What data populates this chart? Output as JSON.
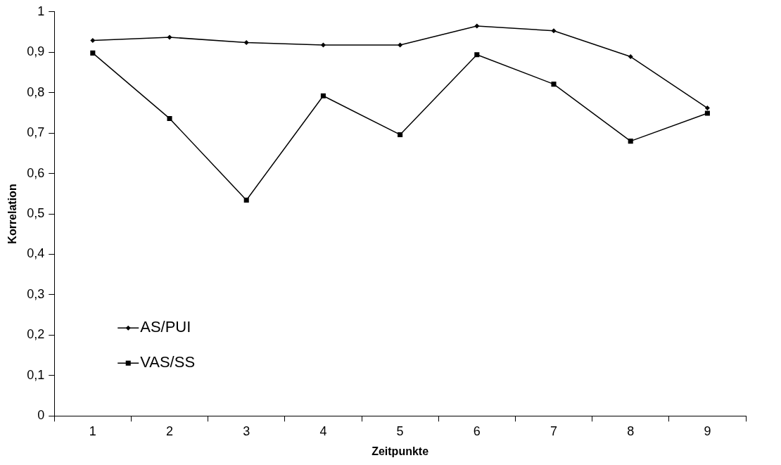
{
  "chart_data": {
    "type": "line",
    "xlabel": "Zeitpunkte",
    "ylabel": "Korrelation",
    "categories": [
      "1",
      "2",
      "3",
      "4",
      "5",
      "6",
      "7",
      "8",
      "9"
    ],
    "series": [
      {
        "name": "AS/PUI",
        "color": "#000000",
        "marker": "diamond",
        "values": [
          0.929,
          0.937,
          0.924,
          0.918,
          0.918,
          0.965,
          0.953,
          0.889,
          0.762
        ]
      },
      {
        "name": "VAS/SS",
        "color": "#000000",
        "marker": "square",
        "values": [
          0.898,
          0.736,
          0.534,
          0.792,
          0.696,
          0.894,
          0.821,
          0.68,
          0.749
        ]
      }
    ],
    "ylim": [
      0,
      1
    ],
    "yticks": [
      0,
      {
        "value": 0.1,
        "label": "0,1"
      },
      {
        "value": 0.2,
        "label": "0,2"
      },
      {
        "value": 0.3,
        "label": "0,3"
      },
      {
        "value": 0.4,
        "label": "0,4"
      },
      {
        "value": 0.5,
        "label": "0,5"
      },
      {
        "value": 0.6,
        "label": "0,6"
      },
      {
        "value": 0.7,
        "label": "0,7"
      },
      {
        "value": 0.8,
        "label": "0,8"
      },
      {
        "value": 0.9,
        "label": "0,9"
      },
      1
    ],
    "grid": false,
    "legend": "bottom left",
    "line_style": "solid"
  }
}
